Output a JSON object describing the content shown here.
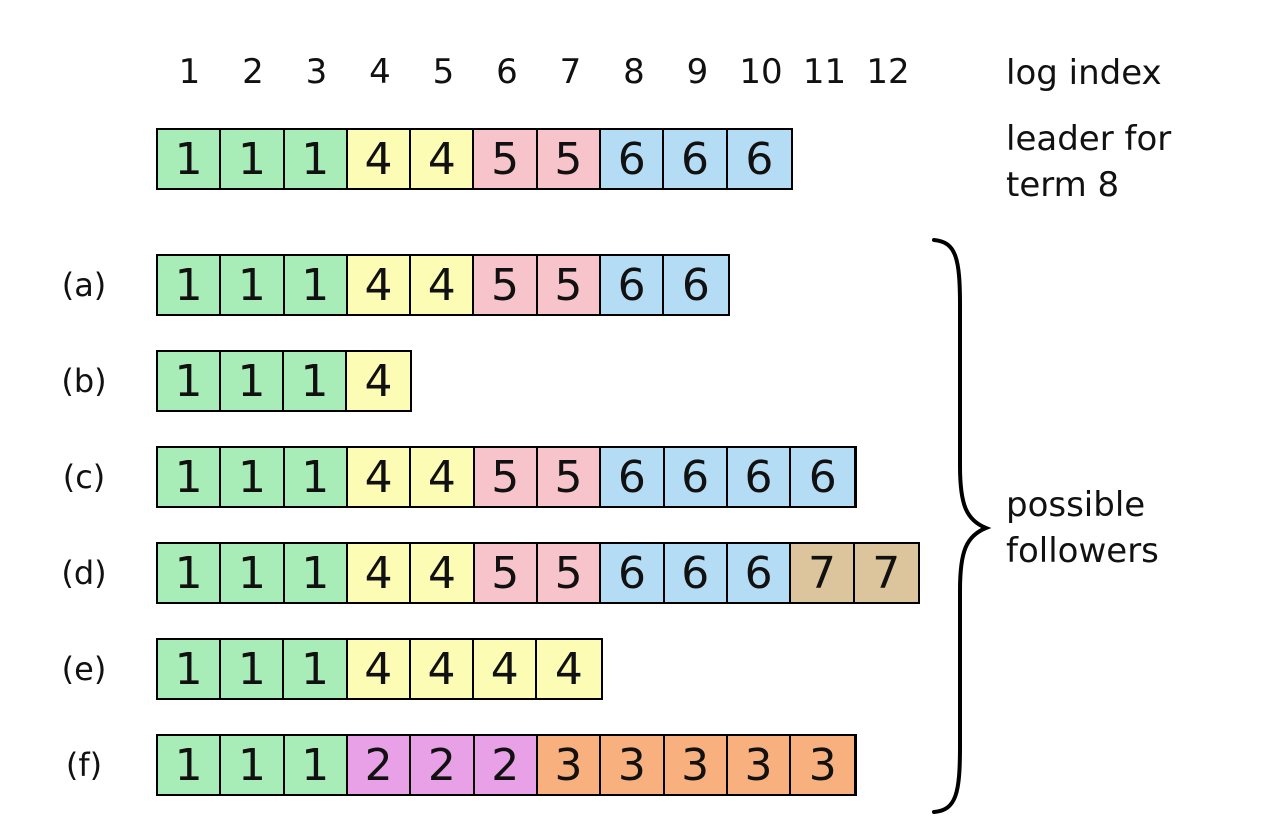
{
  "log_index": {
    "numbers": [
      "1",
      "2",
      "3",
      "4",
      "5",
      "6",
      "7",
      "8",
      "9",
      "10",
      "11",
      "12"
    ],
    "label": "log index"
  },
  "leader": {
    "label_line1": "leader for",
    "label_line2": "term 8",
    "terms": [
      "1",
      "1",
      "1",
      "4",
      "4",
      "5",
      "5",
      "6",
      "6",
      "6"
    ]
  },
  "followers_label": {
    "line1": "possible",
    "line2": "followers"
  },
  "followers": [
    {
      "label": "(a)",
      "terms": [
        "1",
        "1",
        "1",
        "4",
        "4",
        "5",
        "5",
        "6",
        "6"
      ]
    },
    {
      "label": "(b)",
      "terms": [
        "1",
        "1",
        "1",
        "4"
      ]
    },
    {
      "label": "(c)",
      "terms": [
        "1",
        "1",
        "1",
        "4",
        "4",
        "5",
        "5",
        "6",
        "6",
        "6",
        "6"
      ]
    },
    {
      "label": "(d)",
      "terms": [
        "1",
        "1",
        "1",
        "4",
        "4",
        "5",
        "5",
        "6",
        "6",
        "6",
        "7",
        "7"
      ]
    },
    {
      "label": "(e)",
      "terms": [
        "1",
        "1",
        "1",
        "4",
        "4",
        "4",
        "4"
      ]
    },
    {
      "label": "(f)",
      "terms": [
        "1",
        "1",
        "1",
        "2",
        "2",
        "2",
        "3",
        "3",
        "3",
        "3",
        "3"
      ]
    }
  ],
  "term_colors": {
    "1": "#a8ecb8",
    "2": "#e8a0e6",
    "3": "#f8b07e",
    "4": "#fdfcb4",
    "5": "#f8c4cc",
    "6": "#b4dcf4",
    "7": "#dcc49c"
  }
}
